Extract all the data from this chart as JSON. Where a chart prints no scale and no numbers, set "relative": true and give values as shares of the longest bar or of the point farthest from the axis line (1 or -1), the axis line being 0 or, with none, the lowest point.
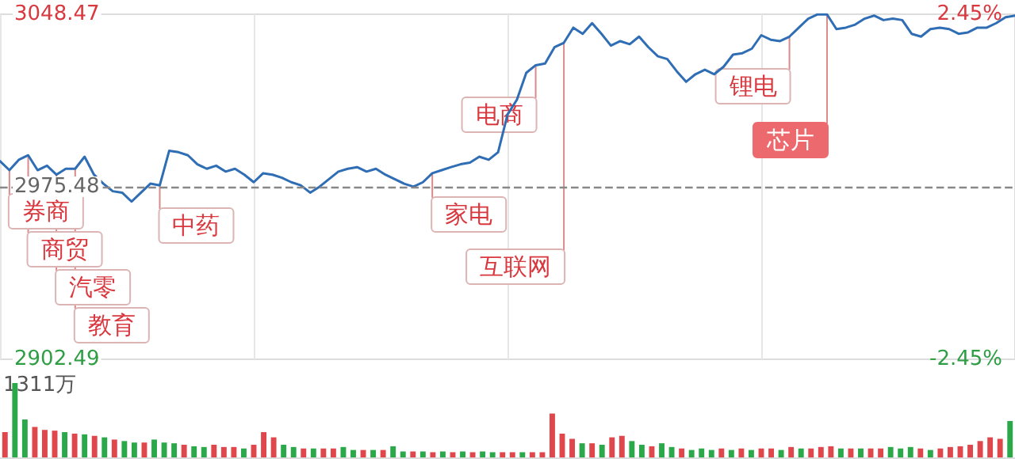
{
  "chart_data": [
    {
      "type": "line",
      "grid": "x",
      "tick_labels": "y",
      "categories": [
        null,
        null,
        null,
        null,
        null,
        null,
        null,
        null,
        null,
        null,
        null,
        null,
        null,
        null,
        null,
        null,
        null,
        null,
        null,
        null,
        null,
        null,
        null,
        null,
        null,
        null,
        null,
        null,
        null,
        null,
        null,
        null,
        null,
        null,
        null,
        null,
        null,
        null,
        null,
        null,
        null,
        null,
        null,
        null,
        null,
        null,
        null,
        null,
        null,
        null,
        null,
        null,
        null,
        null,
        null,
        null,
        null,
        null,
        null,
        null,
        null,
        null,
        null,
        null,
        null,
        null,
        null,
        null,
        null,
        null,
        null,
        null,
        null,
        null,
        null,
        null,
        null,
        null,
        null,
        null,
        null,
        null,
        null,
        null,
        null,
        null,
        null,
        null,
        null,
        null,
        null,
        null,
        null,
        null,
        null,
        null,
        null,
        null,
        null,
        null,
        null,
        null,
        null,
        null,
        null,
        null,
        null,
        null,
        null
      ],
      "series": [
        {
          "color": "#2f6db5",
          "values": [
            2986.3,
            2982.5,
            2986.9,
            2988.8,
            2982.5,
            2984.4,
            2980.6,
            2983.1,
            2983.1,
            2988.2,
            2980.6,
            2976.8,
            2973.6,
            2973.0,
            2969.2,
            2973.0,
            2976.8,
            2976.1,
            2990.7,
            2990.1,
            2988.8,
            2985.0,
            2983.1,
            2984.4,
            2981.9,
            2983.1,
            2980.6,
            2977.4,
            2981.2,
            2980.6,
            2979.3,
            2977.4,
            2976.1,
            2973.0,
            2975.5,
            2978.7,
            2981.9,
            2983.1,
            2983.8,
            2981.9,
            2983.1,
            2980.6,
            2978.7,
            2976.8,
            2975.5,
            2977.4,
            2981.2,
            2982.5,
            2983.8,
            2985.0,
            2985.7,
            2988.2,
            2986.9,
            2990.1,
            3006.0,
            3012.3,
            3023.7,
            3026.9,
            3027.6,
            3034.5,
            3036.4,
            3042.8,
            3040.2,
            3044.7,
            3040.2,
            3035.2,
            3037.1,
            3035.8,
            3039.0,
            3034.5,
            3030.7,
            3029.5,
            3024.4,
            3019.9,
            3023.1,
            3025.0,
            3023.1,
            3026.3,
            3031.4,
            3032.0,
            3033.9,
            3039.6,
            3037.7,
            3037.1,
            3039.0,
            3042.8,
            3046.6,
            3048.4,
            3048.4,
            3042.2,
            3042.8,
            3044.1,
            3046.6,
            3047.9,
            3046.0,
            3046.6,
            3046.0,
            3040.2,
            3039.0,
            3042.2,
            3042.8,
            3042.2,
            3040.2,
            3040.8,
            3042.8,
            3042.8,
            3044.7,
            3047.2,
            3047.9
          ],
          "value_labels": [
            null,
            "券商",
            null,
            "商贸",
            null,
            null,
            "汽零",
            null,
            "教育",
            null,
            null,
            null,
            null,
            null,
            null,
            null,
            null,
            "中药",
            null,
            null,
            null,
            null,
            null,
            null,
            null,
            null,
            null,
            null,
            null,
            null,
            null,
            null,
            null,
            null,
            null,
            null,
            null,
            null,
            null,
            null,
            null,
            null,
            null,
            null,
            null,
            null,
            "家电",
            null,
            null,
            null,
            null,
            null,
            null,
            null,
            null,
            null,
            null,
            "电商",
            null,
            null,
            "互联网",
            null,
            null,
            null,
            null,
            null,
            null,
            null,
            null,
            null,
            null,
            null,
            null,
            null,
            null,
            null,
            null,
            null,
            null,
            null,
            null,
            null,
            null,
            null,
            "锂电",
            null,
            null,
            null,
            "芯片",
            null,
            null,
            null,
            null,
            null,
            null,
            null,
            null,
            null,
            null,
            null,
            null,
            null,
            null,
            null,
            null,
            null,
            null,
            null,
            null
          ]
        }
      ],
      "ylim": [
        2902.49,
        3048.47
      ],
      "yticks": [
        2902.49,
        2975.48,
        3048.47
      ],
      "y2lim": [
        -2.45,
        2.45
      ],
      "y2ticks": [
        {
          "value": -2.45,
          "label": "-2.45%"
        },
        {
          "value": 2.45,
          "label": "2.45%"
        }
      ],
      "ref_lines": [
        {
          "axis": "y",
          "value": 2975.48,
          "color": "#888888",
          "line_style": "dashed"
        }
      ]
    },
    {
      "type": "bar",
      "relative": true,
      "annotations": [
        "1311万"
      ],
      "categories": [
        null,
        null,
        null,
        null,
        null,
        null,
        null,
        null,
        null,
        null,
        null,
        null,
        null,
        null,
        null,
        null,
        null,
        null,
        null,
        null,
        null,
        null,
        null,
        null,
        null,
        null,
        null,
        null,
        null,
        null,
        null,
        null,
        null,
        null,
        null,
        null,
        null,
        null,
        null,
        null,
        null,
        null,
        null,
        null,
        null,
        null,
        null,
        null,
        null,
        null,
        null,
        null,
        null,
        null,
        null,
        null,
        null,
        null,
        null,
        null,
        null,
        null,
        null,
        null,
        null,
        null,
        null,
        null,
        null,
        null,
        null,
        null,
        null,
        null,
        null,
        null,
        null,
        null,
        null,
        null,
        null,
        null,
        null,
        null,
        null,
        null,
        null,
        null,
        null,
        null,
        null,
        null,
        null,
        null,
        null,
        null,
        null,
        null,
        null,
        null,
        null,
        null
      ],
      "values": [
        0.34,
        1,
        0.51,
        0.41,
        0.37,
        0.36,
        0.34,
        0.32,
        0.31,
        0.29,
        0.27,
        0.24,
        0.22,
        0.2,
        0.2,
        0.24,
        0.2,
        0.19,
        0.17,
        0.15,
        0.14,
        0.17,
        0.14,
        0.14,
        0.12,
        0.17,
        0.34,
        0.27,
        0.17,
        0.14,
        0.12,
        0.12,
        0.12,
        0.12,
        0.14,
        0.1,
        0.1,
        0.1,
        0.1,
        0.15,
        0.08,
        0.08,
        0.08,
        0.07,
        0.08,
        0.07,
        0.08,
        0.07,
        0.08,
        0.07,
        0.07,
        0.07,
        0.07,
        0.07,
        0.07,
        0.59,
        0.32,
        0.25,
        0.19,
        0.19,
        0.17,
        0.27,
        0.29,
        0.22,
        0.17,
        0.15,
        0.19,
        0.14,
        0.12,
        0.1,
        0.12,
        0.1,
        0.12,
        0.1,
        0.12,
        0.1,
        0.12,
        0.12,
        0.1,
        0.14,
        0.12,
        0.12,
        0.14,
        0.15,
        0.12,
        0.12,
        0.12,
        0.12,
        0.12,
        0.14,
        0.12,
        0.14,
        0.12,
        0.1,
        0.12,
        0.14,
        0.15,
        0.17,
        0.22,
        0.27,
        0.25,
        0.49
      ],
      "colors": [
        "#e0474c",
        "#2ba84a",
        "#2ba84a",
        "#e0474c",
        "#e0474c",
        "#e0474c",
        "#2ba84a",
        "#e0474c",
        "#2ba84a",
        "#e0474c",
        "#2ba84a",
        "#e0474c",
        "#2ba84a",
        "#2ba84a",
        "#e0474c",
        "#2ba84a",
        "#2ba84a",
        "#2ba84a",
        "#e0474c",
        "#2ba84a",
        "#2ba84a",
        "#e0474c",
        "#e0474c",
        "#e0474c",
        "#2ba84a",
        "#e0474c",
        "#e0474c",
        "#e0474c",
        "#2ba84a",
        "#2ba84a",
        "#e0474c",
        "#2ba84a",
        "#e0474c",
        "#e0474c",
        "#2ba84a",
        "#2ba84a",
        "#e0474c",
        "#2ba84a",
        "#e0474c",
        "#2ba84a",
        "#2ba84a",
        "#e0474c",
        "#2ba84a",
        "#e0474c",
        "#2ba84a",
        "#e0474c",
        "#2ba84a",
        "#e0474c",
        "#2ba84a",
        "#2ba84a",
        "#e0474c",
        "#e0474c",
        "#2ba84a",
        "#e0474c",
        "#e0474c",
        "#e0474c",
        "#e0474c",
        "#e0474c",
        "#2ba84a",
        "#e0474c",
        "#2ba84a",
        "#e0474c",
        "#e0474c",
        "#2ba84a",
        "#2ba84a",
        "#e0474c",
        "#2ba84a",
        "#2ba84a",
        "#e0474c",
        "#2ba84a",
        "#2ba84a",
        "#2ba84a",
        "#e0474c",
        "#2ba84a",
        "#e0474c",
        "#2ba84a",
        "#e0474c",
        "#e0474c",
        "#2ba84a",
        "#e0474c",
        "#2ba84a",
        "#e0474c",
        "#e0474c",
        "#e0474c",
        "#2ba84a",
        "#e0474c",
        "#2ba84a",
        "#e0474c",
        "#e0474c",
        "#2ba84a",
        "#2ba84a",
        "#2ba84a",
        "#e0474c",
        "#2ba84a",
        "#e0474c",
        "#e0474c",
        "#e0474c",
        "#e0474c",
        "#e0474c",
        "#e0474c",
        "#e0474c",
        "#2ba84a"
      ]
    }
  ]
}
